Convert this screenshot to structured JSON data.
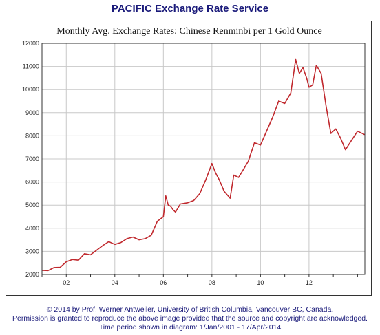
{
  "service_title": "PACIFIC Exchange Rate Service",
  "footer": {
    "line1": "© 2014 by Prof. Werner Antweiler, University of British Columbia, Vancouver BC, Canada.",
    "line2": "Permission is granted to reproduce the above image provided that the source and copyright are acknowledged.",
    "line3": "Time period shown in diagram: 1/Jan/2001 - 17/Apr/2014"
  },
  "colors": {
    "line": "#c0282d",
    "title": "#1a1a7a",
    "grid": "#c8c8c8"
  },
  "chart_data": {
    "type": "line",
    "title": "Monthly Avg. Exchange Rates: Chinese Renminbi per 1 Gold Ounce",
    "xlabel": "",
    "ylabel": "",
    "xlim": [
      2001.0,
      2014.3
    ],
    "ylim": [
      2000,
      12000
    ],
    "xticks": [
      2002,
      2004,
      2006,
      2008,
      2010,
      2012
    ],
    "xtick_labels": [
      "02",
      "04",
      "06",
      "08",
      "10",
      "12"
    ],
    "yticks": [
      2000,
      3000,
      4000,
      5000,
      6000,
      7000,
      8000,
      9000,
      10000,
      11000,
      12000
    ],
    "grid": true,
    "legend": "none",
    "series": [
      {
        "x": [
          2001.0,
          2001.25,
          2001.5,
          2001.75,
          2002.0,
          2002.25,
          2002.5,
          2002.75,
          2003.0,
          2003.25,
          2003.5,
          2003.75,
          2004.0,
          2004.25,
          2004.5,
          2004.75,
          2005.0,
          2005.25,
          2005.5,
          2005.75,
          2006.0,
          2006.1,
          2006.2,
          2006.3,
          2006.4,
          2006.5,
          2006.7,
          2007.0,
          2007.25,
          2007.5,
          2007.75,
          2008.0,
          2008.15,
          2008.3,
          2008.5,
          2008.75,
          2008.9,
          2009.1,
          2009.3,
          2009.5,
          2009.75,
          2010.0,
          2010.25,
          2010.5,
          2010.75,
          2011.0,
          2011.25,
          2011.45,
          2011.6,
          2011.75,
          2011.9,
          2012.0,
          2012.15,
          2012.3,
          2012.5,
          2012.7,
          2012.9,
          2013.1,
          2013.3,
          2013.5,
          2013.75,
          2014.0,
          2014.29
        ],
        "y": [
          2180,
          2170,
          2300,
          2310,
          2550,
          2650,
          2620,
          2900,
          2850,
          3050,
          3250,
          3420,
          3300,
          3380,
          3550,
          3620,
          3500,
          3550,
          3700,
          4300,
          4500,
          5400,
          5000,
          4950,
          4800,
          4700,
          5050,
          5100,
          5200,
          5500,
          6100,
          6800,
          6400,
          6100,
          5600,
          5300,
          6300,
          6200,
          6550,
          6900,
          7700,
          7600,
          8200,
          8800,
          9500,
          9400,
          9850,
          11300,
          10700,
          10950,
          10500,
          10100,
          10200,
          11050,
          10700,
          9300,
          8100,
          8300,
          7900,
          7400,
          7800,
          8200,
          8050
        ]
      }
    ]
  }
}
